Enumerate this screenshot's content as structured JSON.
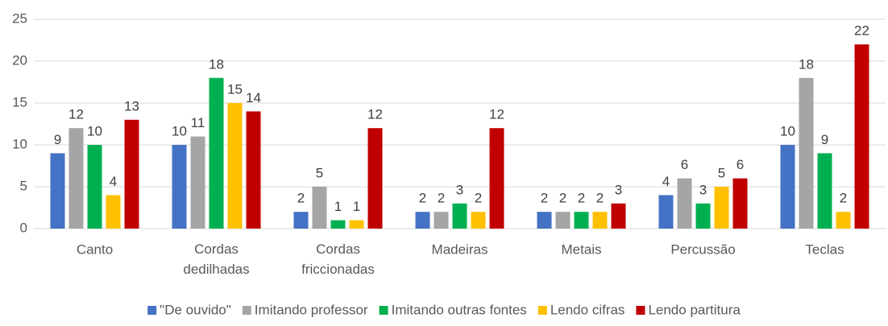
{
  "chart_data": {
    "type": "bar",
    "categories": [
      "Canto",
      "Cordas dedilhadas",
      "Cordas friccionadas",
      "Madeiras",
      "Metais",
      "Percussão",
      "Teclas"
    ],
    "series": [
      {
        "name": "\"De ouvido\"",
        "color": "#4472c4",
        "values": [
          9,
          10,
          2,
          2,
          2,
          4,
          10
        ]
      },
      {
        "name": "Imitando professor",
        "color": "#a5a5a5",
        "values": [
          12,
          11,
          5,
          2,
          2,
          6,
          18
        ]
      },
      {
        "name": "Imitando outras fontes",
        "color": "#00b050",
        "values": [
          10,
          18,
          1,
          3,
          2,
          3,
          9
        ]
      },
      {
        "name": "Lendo cifras",
        "color": "#ffc000",
        "values": [
          4,
          15,
          1,
          2,
          2,
          5,
          2
        ]
      },
      {
        "name": "Lendo partitura",
        "color": "#c00000",
        "values": [
          13,
          14,
          12,
          12,
          3,
          6,
          22
        ]
      }
    ],
    "ylim": [
      0,
      25
    ],
    "yticks": [
      0,
      5,
      10,
      15,
      20,
      25
    ],
    "grid": true,
    "legend": "bottom"
  }
}
